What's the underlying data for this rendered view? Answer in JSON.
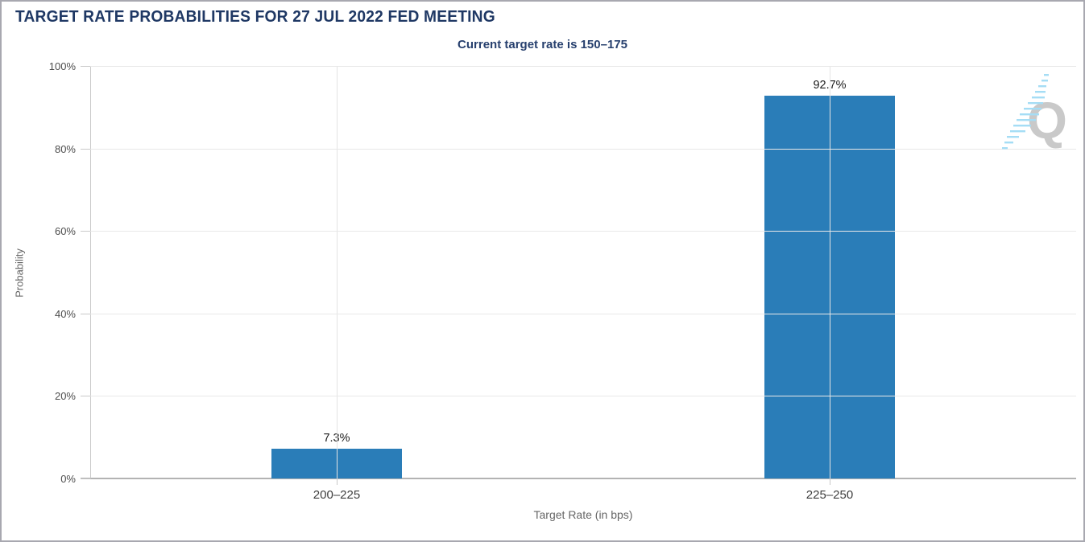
{
  "chart_data": {
    "type": "bar",
    "title": "TARGET RATE PROBABILITIES FOR 27 JUL 2022 FED MEETING",
    "subtitle": "Current target rate is 150–175",
    "categories": [
      "200–225",
      "225–250"
    ],
    "values": [
      7.3,
      92.7
    ],
    "value_labels": [
      "7.3%",
      "92.7%"
    ],
    "xlabel": "Target Rate (in bps)",
    "ylabel": "Probability",
    "ylim": [
      0,
      100
    ],
    "yticks": [
      0,
      20,
      40,
      60,
      80,
      100
    ],
    "ytick_labels": [
      "0%",
      "20%",
      "40%",
      "60%",
      "80%",
      "100%"
    ],
    "grid": true,
    "legend": false,
    "bar_color": "#2a7db8",
    "title_color": "#1f3864",
    "subtitle_color": "#27406e"
  },
  "watermark": {
    "letter": "Q",
    "letter_color": "#c9c9c9",
    "hatch_color": "#a5ddf5"
  }
}
